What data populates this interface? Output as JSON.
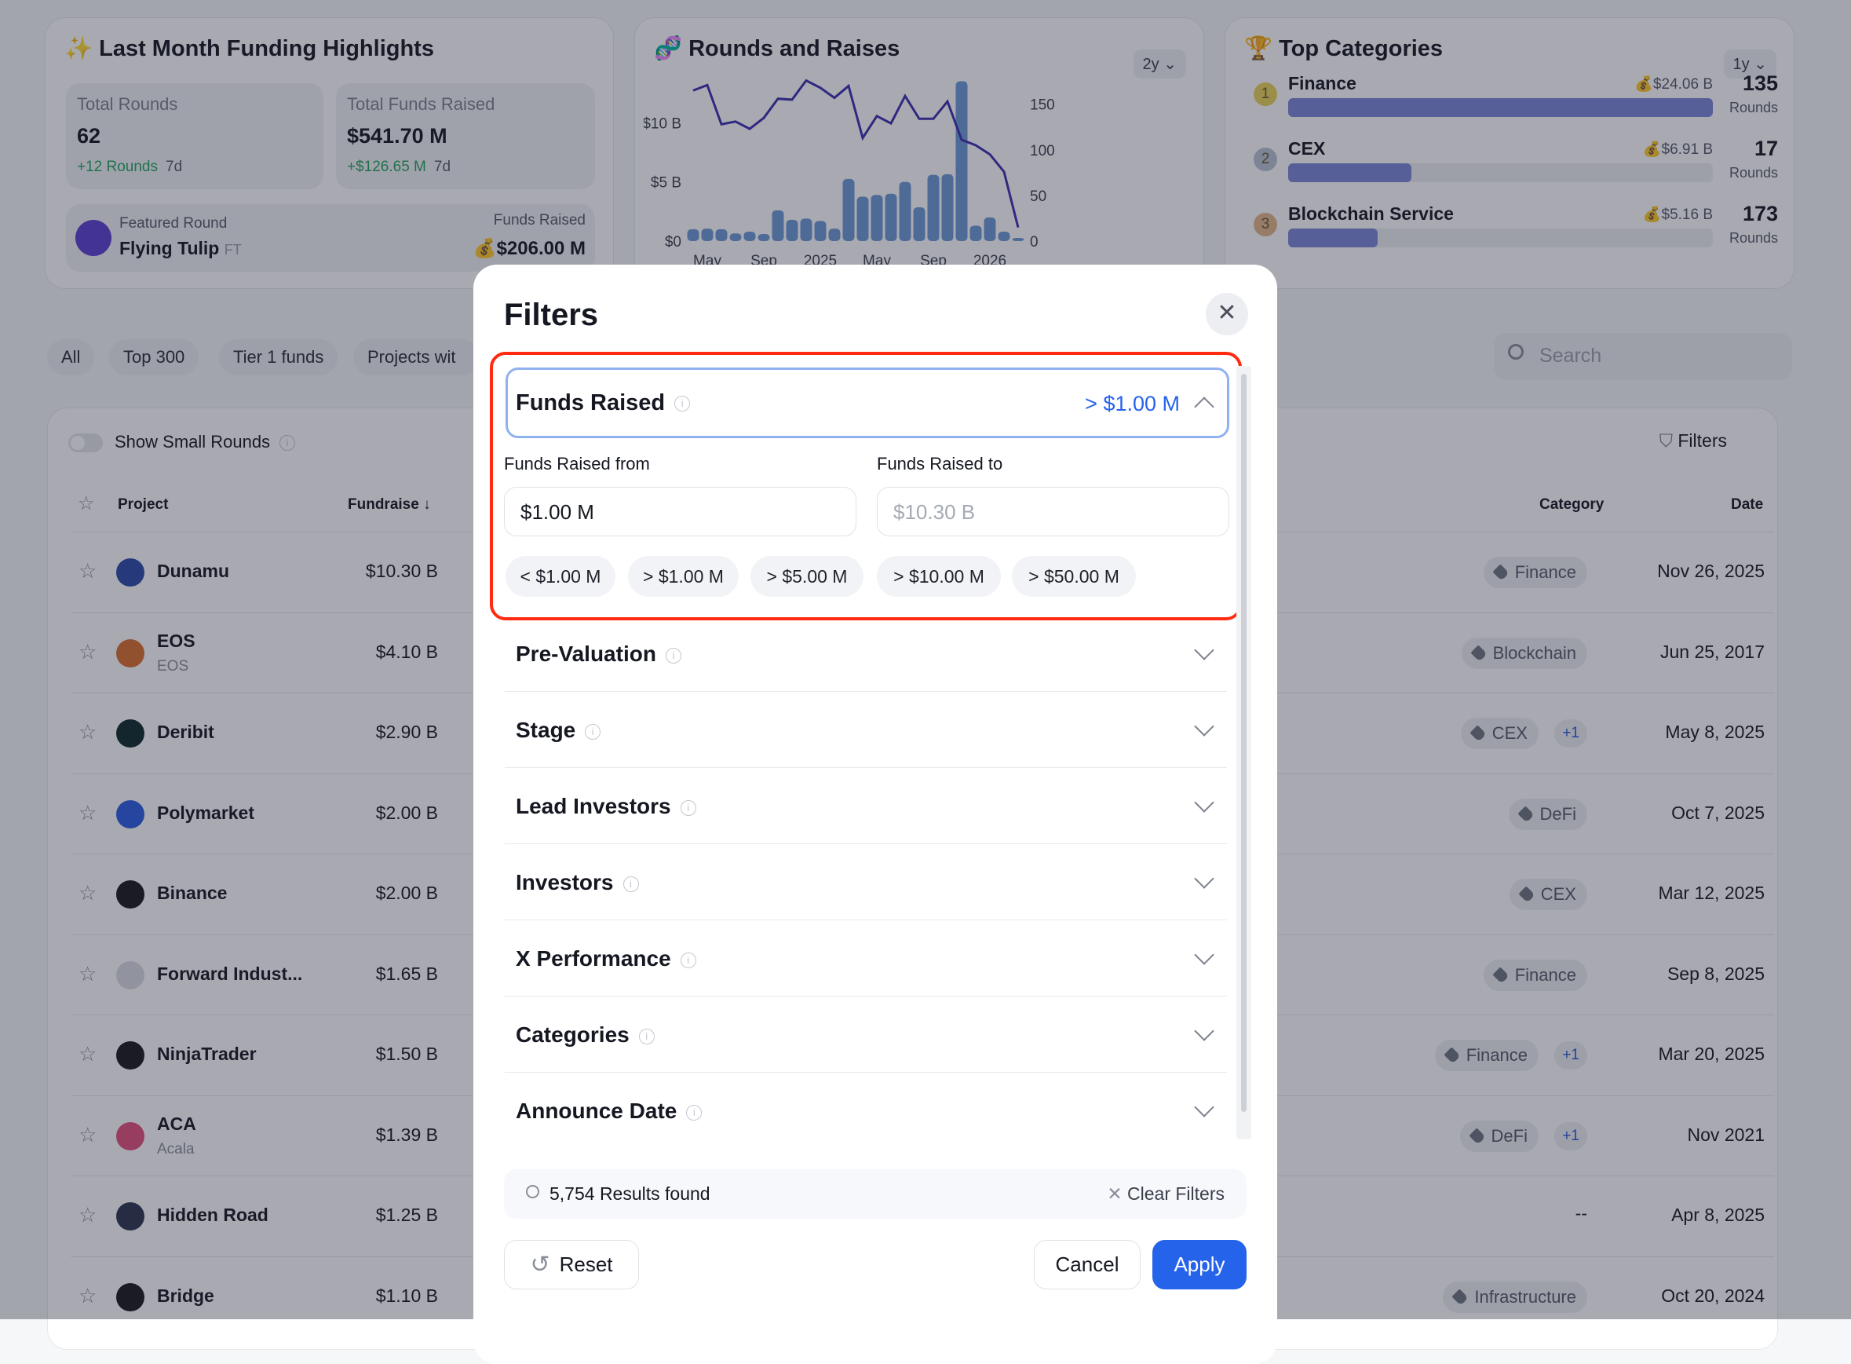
{
  "highlights": {
    "title": "Last Month Funding Highlights",
    "total_rounds_label": "Total Rounds",
    "total_rounds": "62",
    "rounds_change": "+12 Rounds",
    "rounds_period": "7d",
    "total_funds_label": "Total Funds Raised",
    "total_funds": "$541.70 M",
    "funds_change": "+$126.65 M",
    "funds_period": "7d",
    "featured_label": "Featured Round",
    "featured_name": "Flying Tulip",
    "featured_ticker": "FT",
    "featured_funds_label": "Funds Raised",
    "featured_funds": "$206.00 M"
  },
  "rounds_chart_card": {
    "title": "Rounds and Raises",
    "period": "2y"
  },
  "chart_data": {
    "type": "bar+line",
    "title": "Rounds and Raises",
    "x": [
      "Apr 2024",
      "May 2024",
      "Jun 2024",
      "Jul 2024",
      "Aug 2024",
      "Sep 2024",
      "Oct 2024",
      "Nov 2024",
      "Dec 2024",
      "Jan 2025",
      "Feb 2025",
      "Mar 2025",
      "Apr 2025",
      "May 2025",
      "Jun 2025",
      "Jul 2025",
      "Aug 2025",
      "Sep 2025",
      "Oct 2025",
      "Nov 2025",
      "Dec 2025",
      "Jan 2026",
      "Feb 2026",
      "Mar 2026"
    ],
    "x_tick_labels": [
      "May",
      "Sep",
      "2025",
      "May",
      "Sep",
      "2026"
    ],
    "x_tick_positions": [
      "May 2024",
      "Sep 2024",
      "Jan 2025",
      "May 2025",
      "Sep 2025",
      "Jan 2026"
    ],
    "left_axis": {
      "ticks": [
        "$0",
        "$5 B",
        "$10 B"
      ],
      "ylim": [
        0,
        14
      ],
      "unit": "B USD"
    },
    "right_axis": {
      "ticks": [
        "0",
        "50",
        "100",
        "150"
      ],
      "ylim": [
        0,
        180
      ]
    },
    "series": [
      {
        "type": "bar",
        "axis": "left",
        "color": "#6d9ad6",
        "values": [
          1.0,
          1.05,
          1.0,
          0.65,
          0.8,
          0.6,
          2.6,
          1.8,
          1.9,
          1.7,
          1.05,
          5.25,
          3.75,
          3.9,
          4.0,
          5.0,
          2.85,
          5.6,
          5.65,
          13.5,
          1.3,
          2.0,
          0.8,
          0.1
        ]
      },
      {
        "type": "line",
        "axis": "right",
        "color": "#3a2fb0",
        "values": [
          165,
          171,
          128,
          131,
          123,
          135,
          156,
          155,
          176,
          168,
          157,
          170,
          113,
          137,
          129,
          159,
          134,
          134,
          153,
          111,
          105,
          95,
          76,
          15
        ]
      }
    ],
    "grid": false
  },
  "top_categories": {
    "title": "Top Categories",
    "period": "1y",
    "rounds_label": "Rounds",
    "items": [
      {
        "rank": "1",
        "name": "Finance",
        "amount": "$24.06 B",
        "count": "135",
        "fill": 1.0,
        "badge": "#e8d25a"
      },
      {
        "rank": "2",
        "name": "CEX",
        "amount": "$6.91 B",
        "count": "17",
        "fill": 0.29,
        "badge": "#b9c2d2"
      },
      {
        "rank": "3",
        "name": "Blockchain Service",
        "amount": "$5.16 B",
        "count": "173",
        "fill": 0.21,
        "badge": "#e3b58a"
      }
    ]
  },
  "filter_chips": [
    "All",
    "Top 300",
    "Tier 1 funds",
    "Projects wit"
  ],
  "search": {
    "placeholder": "Search"
  },
  "table": {
    "show_small_rounds": "Show Small Rounds",
    "filters_label": "Filters",
    "columns": {
      "project": "Project",
      "fundraise": "Fundraise ↓",
      "category": "Category",
      "date": "Date"
    },
    "rows": [
      {
        "name": "Dunamu",
        "sub": "",
        "amount": "$10.30 B",
        "category": "Finance",
        "extra": "",
        "date": "Nov 26, 2025",
        "logo": "#2c4aa8"
      },
      {
        "name": "EOS",
        "sub": "EOS",
        "amount": "$4.10 B",
        "category": "Blockchain",
        "extra": "",
        "date": "Jun 25, 2017",
        "logo": "#d9702e"
      },
      {
        "name": "Deribit",
        "sub": "",
        "amount": "$2.90 B",
        "category": "CEX",
        "extra": "+1",
        "date": "May 8, 2025",
        "logo": "#0f2a2a"
      },
      {
        "name": "Polymarket",
        "sub": "",
        "amount": "$2.00 B",
        "category": "DeFi",
        "extra": "",
        "date": "Oct 7, 2025",
        "logo": "#2a5ce0"
      },
      {
        "name": "Binance",
        "sub": "",
        "amount": "$2.00 B",
        "category": "CEX",
        "extra": "",
        "date": "Mar 12, 2025",
        "logo": "#1a1a1a"
      },
      {
        "name": "Forward Indust...",
        "sub": "",
        "amount": "$1.65 B",
        "category": "Finance",
        "extra": "",
        "date": "Sep 8, 2025",
        "logo": "#d9dce2"
      },
      {
        "name": "NinjaTrader",
        "sub": "",
        "amount": "$1.50 B",
        "category": "Finance",
        "extra": "+1",
        "date": "Mar 20, 2025",
        "logo": "#1a1a1a"
      },
      {
        "name": "ACA",
        "sub": "Acala",
        "amount": "$1.39 B",
        "category": "DeFi",
        "extra": "+1",
        "date": "Nov 2021",
        "logo": "#e04f7d"
      },
      {
        "name": "Hidden Road",
        "sub": "",
        "amount": "$1.25 B",
        "category": "--",
        "extra": "",
        "date": "Apr 8, 2025",
        "logo": "#2a3450"
      },
      {
        "name": "Bridge",
        "sub": "",
        "amount": "$1.10 B",
        "category": "Infrastructure",
        "extra": "",
        "date": "Oct 20, 2024",
        "logo": "#1a1a1a"
      }
    ]
  },
  "modal": {
    "title": "Filters",
    "funds_raised": {
      "title": "Funds Raised",
      "summary": "> $1.00 M",
      "from_label": "Funds Raised from",
      "from_value": "$1.00 M",
      "to_label": "Funds Raised to",
      "to_placeholder": "$10.30 B",
      "quick": [
        "< $1.00 M",
        "> $1.00 M",
        "> $5.00 M",
        "> $10.00 M",
        "> $50.00 M"
      ]
    },
    "sections": [
      "Pre-Valuation",
      "Stage",
      "Lead Investors",
      "Investors",
      "X Performance",
      "Categories",
      "Announce Date"
    ],
    "results": "5,754 Results found",
    "clear": "Clear Filters",
    "reset": "Reset",
    "cancel": "Cancel",
    "apply": "Apply",
    "accent": "#2563eb",
    "highlight": "#ff2a10"
  }
}
